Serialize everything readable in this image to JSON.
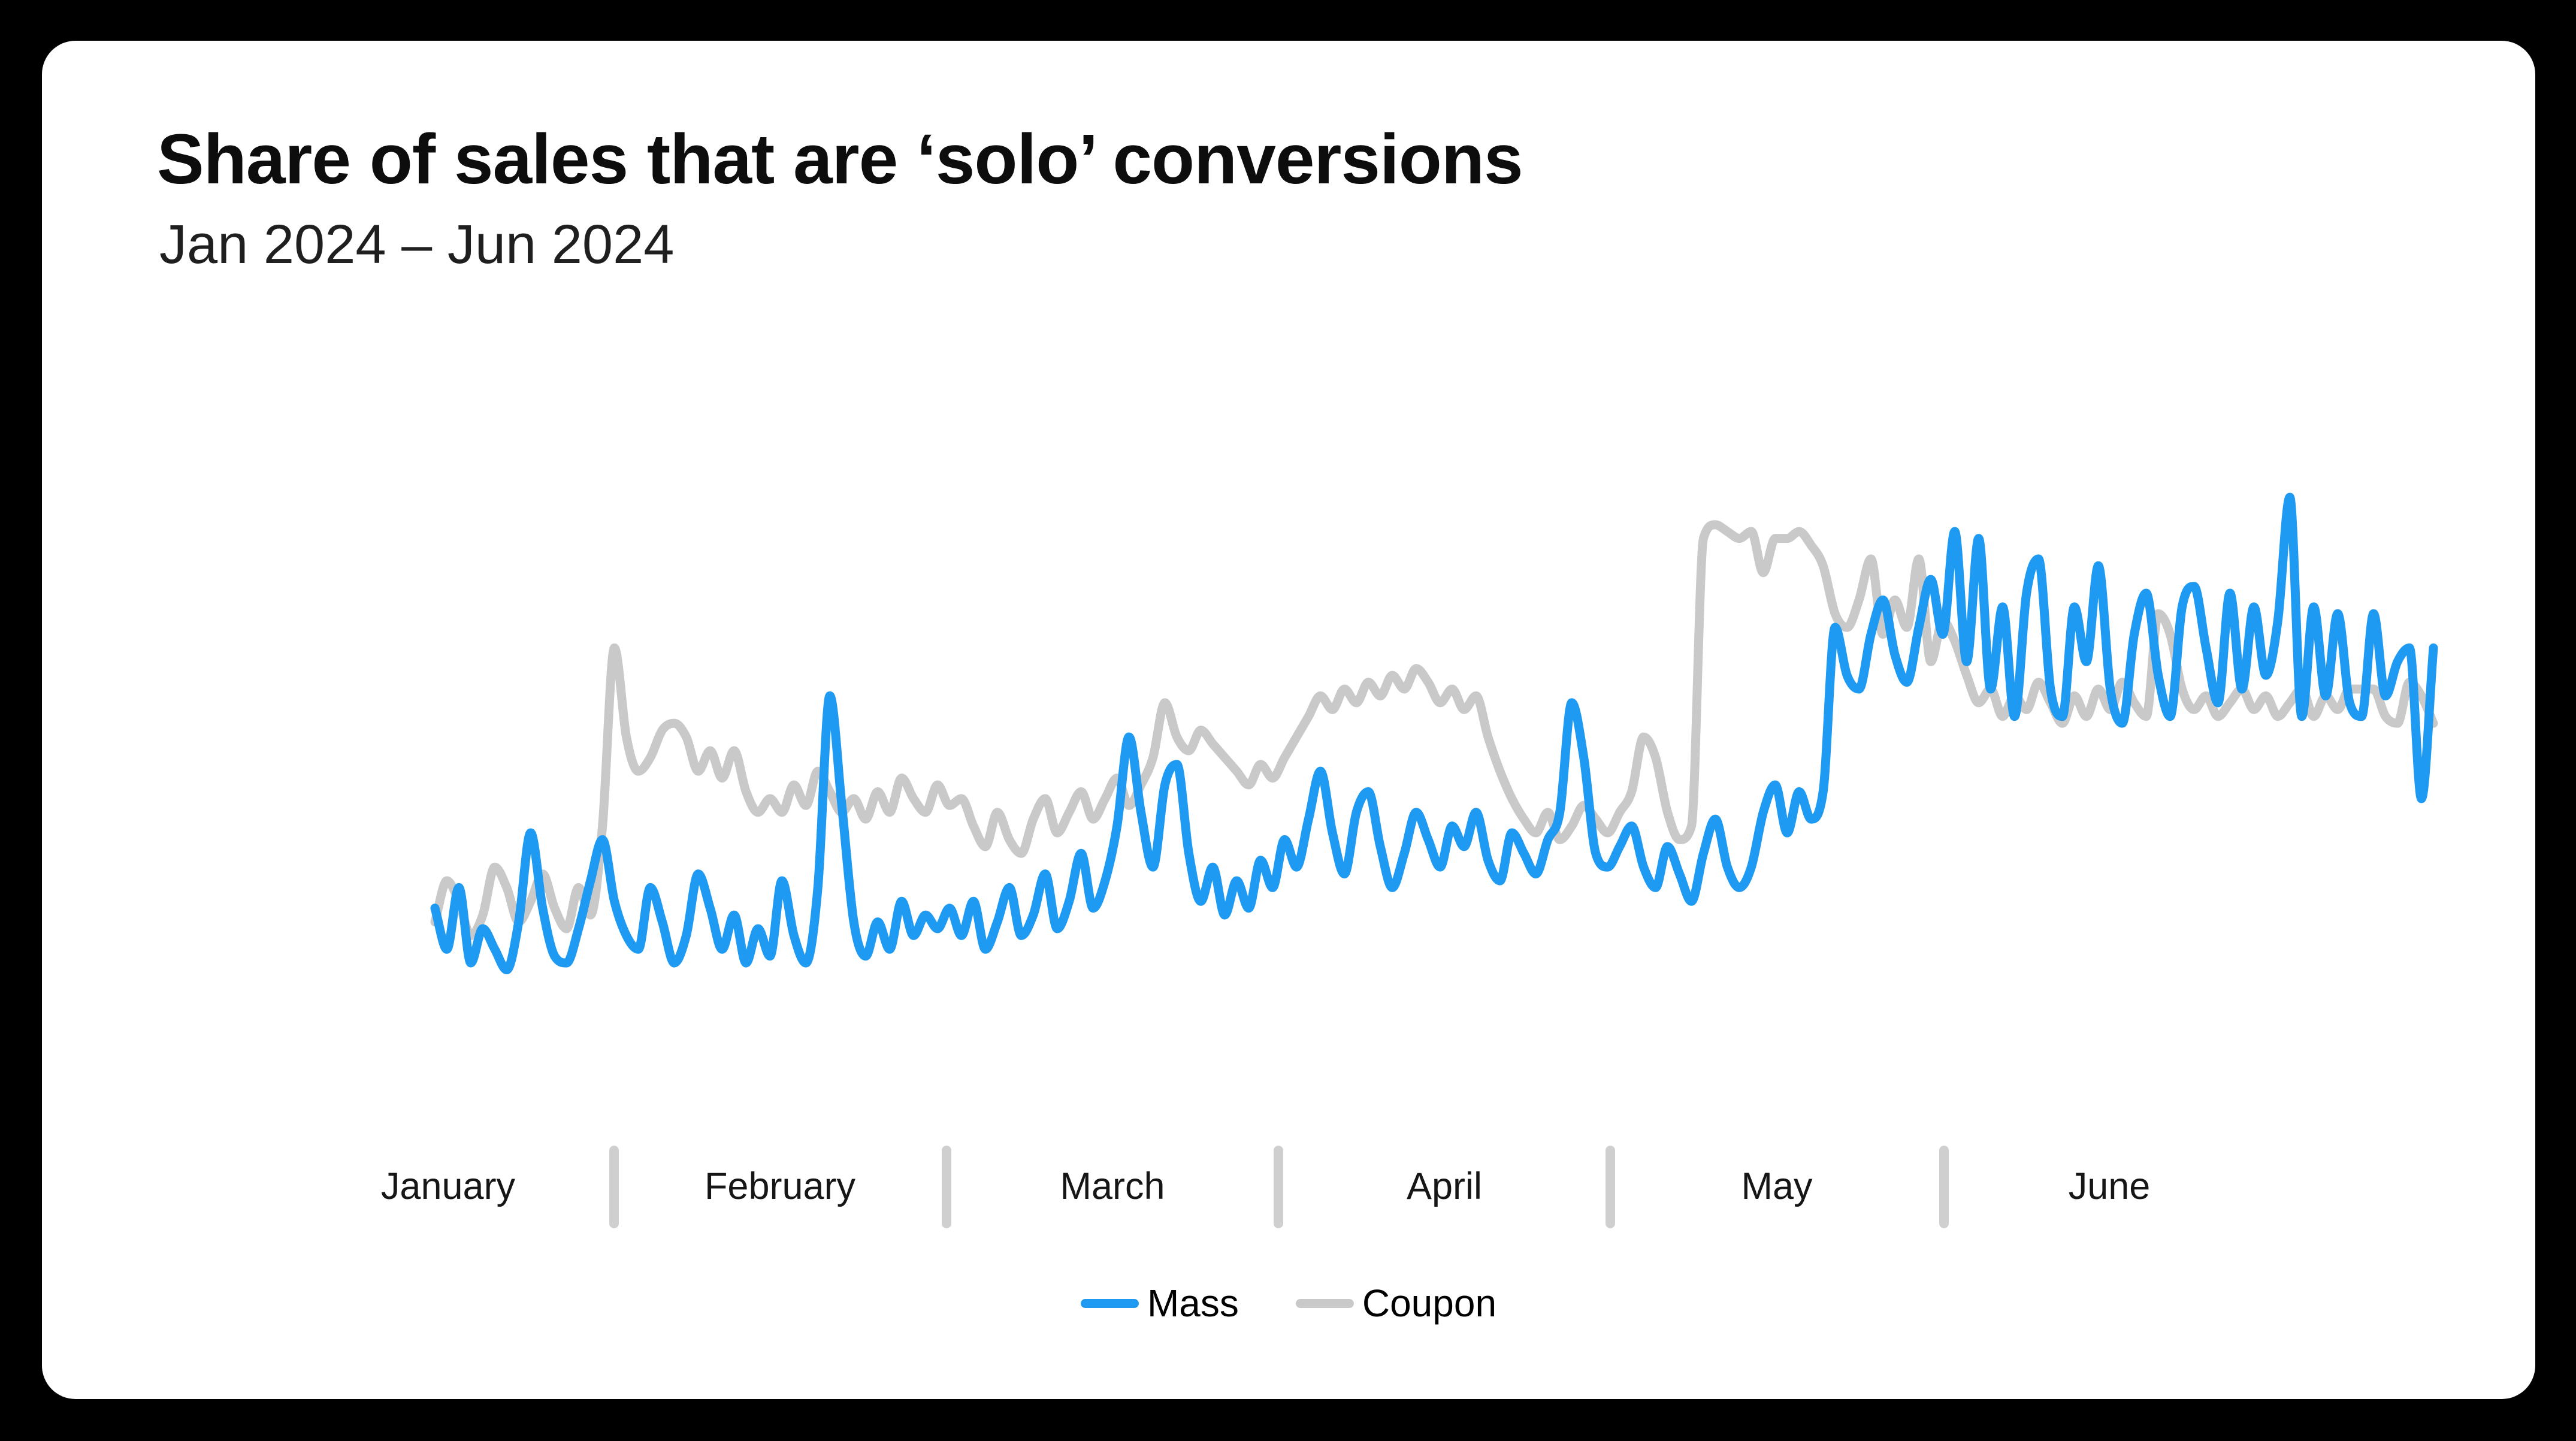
{
  "chart": {
    "title": "Share of sales that are ‘solo’ conversions",
    "subtitle": "Jan 2024 – Jun 2024"
  },
  "chart_data": {
    "type": "line",
    "title": "Share of sales that are ‘solo’ conversions",
    "subtitle": "Jan 2024 – Jun 2024",
    "xlabel": "",
    "ylabel": "",
    "x_axis": {
      "months": [
        "January",
        "February",
        "March",
        "April",
        "May",
        "June"
      ],
      "start": "Jan 2024",
      "end": "Jun 2024",
      "gridlines": false
    },
    "y_axis": {
      "visible": false,
      "ylim": [
        15,
        95
      ]
    },
    "legend_position": "bottom-center",
    "series": [
      {
        "name": "Mass",
        "color": "#1E9AF2",
        "values": [
          30,
          24,
          33,
          22,
          27,
          24,
          21,
          28,
          41,
          30,
          23,
          22,
          27,
          34,
          40,
          31,
          26,
          24,
          33,
          28,
          22,
          26,
          35,
          30,
          24,
          29,
          22,
          27,
          23,
          34,
          26,
          22,
          33,
          61,
          45,
          28,
          23,
          28,
          24,
          31,
          26,
          29,
          27,
          30,
          26,
          31,
          24,
          28,
          33,
          26,
          29,
          35,
          27,
          31,
          38,
          30,
          34,
          42,
          55,
          44,
          36,
          48,
          51,
          38,
          31,
          36,
          29,
          34,
          30,
          37,
          33,
          40,
          36,
          43,
          50,
          41,
          35,
          44,
          47,
          39,
          33,
          38,
          44,
          40,
          36,
          42,
          39,
          44,
          37,
          34,
          41,
          38,
          35,
          40,
          44,
          60,
          52,
          38,
          36,
          39,
          42,
          36,
          33,
          39,
          35,
          31,
          38,
          43,
          36,
          33,
          36,
          44,
          48,
          41,
          47,
          43,
          47,
          71,
          64,
          62,
          70,
          75,
          67,
          63,
          71,
          78,
          70,
          85,
          66,
          84,
          62,
          74,
          58,
          76,
          81,
          62,
          58,
          74,
          66,
          80,
          62,
          57,
          70,
          76,
          64,
          58,
          74,
          77,
          68,
          60,
          76,
          62,
          74,
          64,
          72,
          90,
          58,
          74,
          61,
          73,
          60,
          58,
          73,
          61,
          66,
          68,
          46,
          68
        ]
      },
      {
        "name": "Coupon",
        "color": "#C9C9C9",
        "values": [
          28,
          34,
          31,
          26,
          29,
          36,
          33,
          28,
          31,
          35,
          30,
          27,
          33,
          29,
          42,
          68,
          55,
          50,
          52,
          56,
          57,
          55,
          50,
          53,
          49,
          53,
          47,
          44,
          46,
          44,
          48,
          45,
          50,
          47,
          44,
          46,
          43,
          47,
          44,
          49,
          46,
          44,
          48,
          45,
          46,
          42,
          39,
          44,
          40,
          38,
          43,
          46,
          41,
          44,
          47,
          43,
          46,
          49,
          45,
          48,
          52,
          60,
          55,
          53,
          56,
          54,
          52,
          50,
          48,
          51,
          49,
          52,
          55,
          58,
          61,
          59,
          62,
          60,
          63,
          61,
          64,
          62,
          65,
          63,
          60,
          62,
          59,
          61,
          55,
          50,
          46,
          43,
          41,
          44,
          40,
          42,
          45,
          43,
          41,
          44,
          47,
          55,
          52,
          44,
          40,
          42,
          84,
          86,
          85,
          84,
          85,
          79,
          84,
          84,
          85,
          83,
          80,
          73,
          71,
          75,
          81,
          70,
          75,
          71,
          81,
          66,
          72,
          69,
          64,
          60,
          62,
          58,
          61,
          59,
          63,
          60,
          57,
          61,
          58,
          62,
          59,
          63,
          60,
          58,
          73,
          70,
          62,
          59,
          61,
          58,
          60,
          62,
          59,
          61,
          58,
          60,
          62,
          58,
          61,
          59,
          62,
          62,
          62,
          58,
          57,
          63,
          61,
          57
        ]
      }
    ]
  },
  "colors": {
    "background": "#000000",
    "card": "#ffffff",
    "tick": "#cfcfcf",
    "title_text": "#0d0d0d",
    "subtitle_text": "#1f1f1f",
    "axis_text": "#161616"
  }
}
